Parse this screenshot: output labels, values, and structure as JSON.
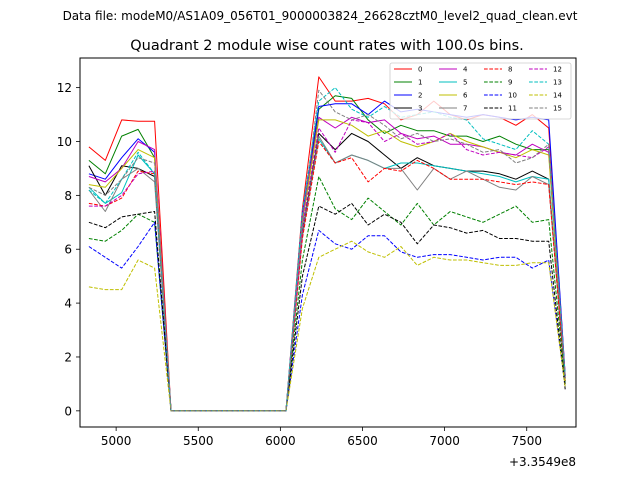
{
  "chart_data": {
    "type": "line",
    "suptitle": "Data file: modeM0/AS1A09_056T01_9000003824_26628cztM0_level2_quad_clean.evt",
    "title": "Quadrant 2 module wise count rates with 100.0s bins.",
    "xlabel": "",
    "ylabel": "",
    "x_offset_label": "+3.3549e8",
    "x_ticks": [
      5000,
      5500,
      6000,
      6500,
      7000,
      7500
    ],
    "y_ticks": [
      0,
      2,
      4,
      6,
      8,
      10,
      12
    ],
    "xlim": [
      4780,
      7800
    ],
    "ylim": [
      -0.6,
      13.1
    ],
    "grid": false,
    "legend_position": "top-right",
    "x": [
      4834,
      4934,
      5034,
      5134,
      5234,
      5334,
      5434,
      5534,
      5634,
      5734,
      5834,
      5934,
      6034,
      6134,
      6234,
      6334,
      6434,
      6534,
      6634,
      6734,
      6834,
      6934,
      7034,
      7134,
      7234,
      7334,
      7434,
      7534,
      7634,
      7734
    ],
    "series": [
      {
        "name": "0",
        "color": "#ff0000",
        "dash": "solid",
        "values": [
          9.8,
          9.3,
          10.8,
          10.75,
          10.75,
          0,
          0,
          0,
          0,
          0,
          0,
          0,
          0,
          7.5,
          12.4,
          11.5,
          11.5,
          11.6,
          11.4,
          10.8,
          11.0,
          11.5,
          11.0,
          10.8,
          11.0,
          10.9,
          10.6,
          11.0,
          10.5,
          1.3
        ]
      },
      {
        "name": "1",
        "color": "#008000",
        "dash": "solid",
        "values": [
          9.3,
          8.8,
          10.2,
          10.45,
          9.4,
          0,
          0,
          0,
          0,
          0,
          0,
          0,
          0,
          7.0,
          11.2,
          11.7,
          11.6,
          10.8,
          10.3,
          10.6,
          10.4,
          10.4,
          10.2,
          10.2,
          10.0,
          10.2,
          9.9,
          9.7,
          9.7,
          1.2
        ]
      },
      {
        "name": "2",
        "color": "#0000ff",
        "dash": "solid",
        "values": [
          8.8,
          8.6,
          9.4,
          10.1,
          9.6,
          0,
          0,
          0,
          0,
          0,
          0,
          0,
          0,
          7.3,
          11.3,
          11.4,
          11.4,
          11.0,
          11.5,
          11.1,
          11.2,
          11.1,
          11.0,
          10.9,
          11.0,
          10.9,
          10.8,
          10.9,
          10.8,
          1.3
        ]
      },
      {
        "name": "3",
        "color": "#000000",
        "dash": "solid",
        "values": [
          9.1,
          8.0,
          9.1,
          9.0,
          8.7,
          0,
          0,
          0,
          0,
          0,
          0,
          0,
          0,
          6.6,
          10.3,
          9.7,
          10.3,
          10.0,
          9.5,
          9.0,
          9.4,
          9.1,
          9.0,
          8.9,
          8.9,
          8.8,
          8.6,
          8.9,
          8.6,
          1.0
        ]
      },
      {
        "name": "4",
        "color": "#bf00bf",
        "dash": "solid",
        "values": [
          8.7,
          8.5,
          9.0,
          10.0,
          9.7,
          0,
          0,
          0,
          0,
          0,
          0,
          0,
          0,
          7.2,
          10.9,
          10.5,
          10.9,
          10.7,
          10.8,
          10.3,
          10.1,
          10.2,
          9.9,
          9.9,
          9.8,
          9.6,
          9.5,
          9.9,
          9.6,
          1.3
        ]
      },
      {
        "name": "5",
        "color": "#00bfbf",
        "dash": "solid",
        "values": [
          8.3,
          7.7,
          8.1,
          9.5,
          8.8,
          0,
          0,
          0,
          0,
          0,
          0,
          0,
          0,
          6.5,
          10.1,
          9.2,
          9.5,
          9.3,
          9.0,
          9.2,
          9.2,
          9.1,
          9.0,
          8.9,
          8.8,
          8.7,
          8.5,
          8.7,
          8.6,
          1.2
        ]
      },
      {
        "name": "6",
        "color": "#bfbf00",
        "dash": "solid",
        "values": [
          8.4,
          8.3,
          9.0,
          9.7,
          9.4,
          0,
          0,
          0,
          0,
          0,
          0,
          0,
          0,
          7.0,
          10.8,
          10.8,
          10.6,
          10.2,
          10.4,
          10.0,
          9.8,
          10.0,
          10.3,
          10.0,
          9.8,
          9.6,
          9.4,
          9.7,
          9.5,
          1.1
        ]
      },
      {
        "name": "7",
        "color": "#808080",
        "dash": "solid",
        "values": [
          8.2,
          7.4,
          8.6,
          9.0,
          8.5,
          0,
          0,
          0,
          0,
          0,
          0,
          0,
          0,
          6.5,
          10.2,
          9.2,
          9.5,
          9.3,
          9.0,
          9.0,
          8.2,
          9.0,
          8.6,
          8.9,
          8.6,
          8.3,
          8.2,
          8.7,
          8.4,
          1.2
        ]
      },
      {
        "name": "8",
        "color": "#ff0000",
        "dash": "dashed",
        "values": [
          7.7,
          7.6,
          7.9,
          8.9,
          8.8,
          0,
          0,
          0,
          0,
          0,
          0,
          0,
          0,
          6.4,
          10.0,
          9.2,
          9.4,
          8.5,
          9.0,
          8.9,
          9.3,
          9.0,
          8.6,
          8.6,
          8.6,
          8.5,
          8.4,
          8.5,
          8.4,
          1.1
        ]
      },
      {
        "name": "9",
        "color": "#008000",
        "dash": "dashed",
        "values": [
          6.4,
          6.3,
          6.7,
          7.3,
          7.0,
          0,
          0,
          0,
          0,
          0,
          0,
          0,
          0,
          5.6,
          8.7,
          7.5,
          7.1,
          7.9,
          7.4,
          6.9,
          7.7,
          6.9,
          7.4,
          7.2,
          7.0,
          7.3,
          7.6,
          7.0,
          7.1,
          1.0
        ]
      },
      {
        "name": "10",
        "color": "#0000ff",
        "dash": "dashed",
        "values": [
          6.1,
          5.7,
          5.3,
          6.1,
          7.0,
          0,
          0,
          0,
          0,
          0,
          0,
          0,
          0,
          4.3,
          6.7,
          6.2,
          6.0,
          6.5,
          6.5,
          5.9,
          5.7,
          5.8,
          5.8,
          5.7,
          5.6,
          5.7,
          5.7,
          5.3,
          5.6,
          0.9
        ]
      },
      {
        "name": "11",
        "color": "#000000",
        "dash": "dashed",
        "values": [
          7.0,
          6.8,
          7.2,
          7.3,
          7.4,
          0,
          0,
          0,
          0,
          0,
          0,
          0,
          0,
          5.0,
          7.6,
          7.3,
          7.7,
          6.9,
          7.3,
          7.0,
          6.2,
          6.9,
          6.8,
          6.6,
          6.7,
          6.4,
          6.4,
          6.3,
          6.3,
          0.8
        ]
      },
      {
        "name": "12",
        "color": "#bf00bf",
        "dash": "dashed",
        "values": [
          7.6,
          7.6,
          8.0,
          8.8,
          8.9,
          0,
          0,
          0,
          0,
          0,
          0,
          0,
          0,
          6.8,
          10.5,
          9.6,
          10.8,
          10.7,
          10.0,
          10.3,
          9.9,
          10.0,
          10.3,
          9.7,
          9.5,
          9.6,
          9.5,
          9.4,
          9.8,
          1.2
        ]
      },
      {
        "name": "13",
        "color": "#00bfbf",
        "dash": "dashed",
        "values": [
          8.2,
          7.7,
          8.6,
          9.6,
          8.8,
          0,
          0,
          0,
          0,
          0,
          0,
          0,
          0,
          7.4,
          11.5,
          12.0,
          11.2,
          10.9,
          11.3,
          10.9,
          11.0,
          11.1,
          10.9,
          10.8,
          10.1,
          9.9,
          9.7,
          10.4,
          9.9,
          1.3
        ]
      },
      {
        "name": "14",
        "color": "#bfbf00",
        "dash": "dashed",
        "values": [
          4.6,
          4.5,
          4.5,
          5.6,
          5.3,
          0,
          0,
          0,
          0,
          0,
          0,
          0,
          0,
          3.8,
          5.7,
          6.0,
          6.3,
          5.9,
          5.7,
          6.1,
          5.4,
          5.7,
          5.6,
          5.6,
          5.5,
          5.4,
          5.4,
          5.5,
          5.5,
          0.9
        ]
      },
      {
        "name": "15",
        "color": "#808080",
        "dash": "dashed",
        "values": [
          8.3,
          8.0,
          8.6,
          9.4,
          9.2,
          0,
          0,
          0,
          0,
          0,
          0,
          0,
          0,
          6.9,
          11.9,
          11.1,
          10.8,
          11.0,
          10.6,
          10.1,
          10.3,
          10.0,
          10.1,
          9.9,
          9.6,
          9.7,
          9.2,
          9.4,
          9.9,
          1.2
        ]
      }
    ]
  }
}
